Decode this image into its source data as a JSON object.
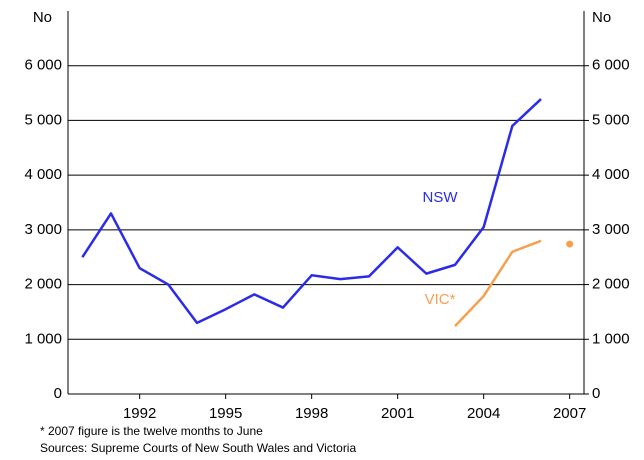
{
  "chart_data": {
    "type": "line",
    "x": [
      1990,
      1991,
      1992,
      1993,
      1994,
      1995,
      1996,
      1997,
      1998,
      1999,
      2000,
      2001,
      2002,
      2003,
      2004,
      2005,
      2006
    ],
    "series": [
      {
        "name": "NSW",
        "color": "#2b2bea",
        "values": [
          2500,
          3300,
          2300,
          2000,
          1300,
          1550,
          1820,
          1580,
          2170,
          2100,
          2150,
          2680,
          2200,
          2360,
          3050,
          4900,
          5390
        ]
      },
      {
        "name": "VIC*",
        "color": "#f5a04f",
        "values": [
          null,
          null,
          null,
          null,
          null,
          null,
          null,
          null,
          null,
          null,
          null,
          null,
          null,
          1240,
          1790,
          2600,
          2800
        ],
        "partial": {
          "x": 2007,
          "value": 2740
        }
      }
    ],
    "y_label": "No",
    "y2_label": "No",
    "xlim": [
      1989.5,
      2007.5
    ],
    "xticks": [
      1992,
      1995,
      1998,
      2001,
      2004,
      2007
    ],
    "ylim": [
      0,
      7000
    ],
    "yticks": [
      0,
      {
        "value": 1000,
        "label": "1 000"
      },
      {
        "value": 2000,
        "label": "2 000"
      },
      {
        "value": 3000,
        "label": "3 000"
      },
      {
        "value": 4000,
        "label": "4 000"
      },
      {
        "value": 5000,
        "label": "5 000"
      },
      {
        "value": 6000,
        "label": "6 000"
      }
    ],
    "y2lim": [
      0,
      7000
    ],
    "y2ticks": [
      0,
      {
        "value": 1000,
        "label": "1 000"
      },
      {
        "value": 2000,
        "label": "2 000"
      },
      {
        "value": 3000,
        "label": "3 000"
      },
      {
        "value": 4000,
        "label": "4 000"
      },
      {
        "value": 5000,
        "label": "5 000"
      },
      {
        "value": 6000,
        "label": "6 000"
      }
    ],
    "grid": true,
    "footnotes": [
      "*   2007 figure is the twelve months to June",
      "Sources: Supreme Courts of New South Wales and Victoria"
    ]
  }
}
